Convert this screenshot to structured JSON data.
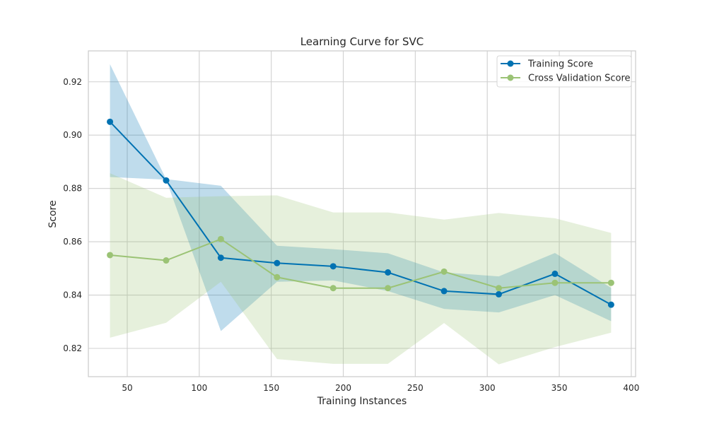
{
  "chart_data": {
    "type": "line",
    "title": "Learning Curve for SVC",
    "xlabel": "Training Instances",
    "ylabel": "Score",
    "xlim": [
      23,
      403
    ],
    "ylim": [
      0.8094,
      0.9316
    ],
    "xticks": [
      50,
      100,
      150,
      200,
      250,
      300,
      350,
      400
    ],
    "yticks": [
      0.82,
      0.84,
      0.86,
      0.88,
      0.9,
      0.92
    ],
    "grid": true,
    "legend_position": "top-right",
    "x": [
      38,
      77,
      115,
      154,
      193,
      231,
      270,
      308,
      347,
      386
    ],
    "series": [
      {
        "name": "Training Score",
        "color": "#0072B2",
        "band_color": "#0072B2",
        "values": [
          0.905,
          0.883,
          0.854,
          0.852,
          0.8508,
          0.8485,
          0.8415,
          0.8403,
          0.848,
          0.8364
        ],
        "lower": [
          0.8843,
          0.8833,
          0.8265,
          0.845,
          0.8455,
          0.8415,
          0.8348,
          0.8335,
          0.84,
          0.8302
        ],
        "upper": [
          0.9266,
          0.8835,
          0.881,
          0.8585,
          0.8572,
          0.8557,
          0.8485,
          0.847,
          0.8558,
          0.8427
        ]
      },
      {
        "name": "Cross Validation Score",
        "color": "#9BC375",
        "band_color": "#9BC375",
        "values": [
          0.855,
          0.853,
          0.861,
          0.8467,
          0.8426,
          0.8426,
          0.8488,
          0.8426,
          0.8446,
          0.8446
        ],
        "lower": [
          0.824,
          0.8296,
          0.845,
          0.816,
          0.8142,
          0.8142,
          0.8295,
          0.814,
          0.8205,
          0.8259
        ],
        "upper": [
          0.8857,
          0.8765,
          0.8771,
          0.8774,
          0.871,
          0.871,
          0.8683,
          0.8708,
          0.8688,
          0.8633
        ]
      }
    ]
  }
}
